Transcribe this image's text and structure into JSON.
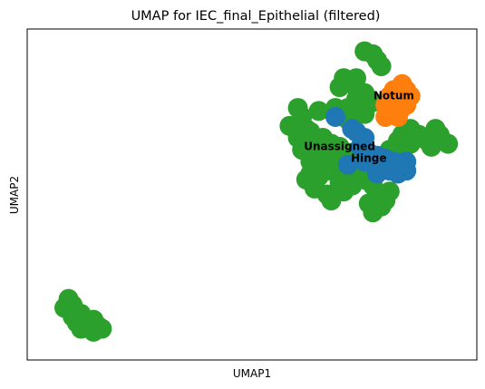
{
  "chart_data": {
    "type": "scatter",
    "title": "UMAP for IEC_final_Epithelial (filtered)",
    "xlabel": "UMAP1",
    "ylabel": "UMAP2",
    "xlim": [
      0,
      100
    ],
    "ylim": [
      0,
      100
    ],
    "ticks": "none",
    "grid": false,
    "legend": "on data",
    "series": [
      {
        "name": "Unassigned",
        "color": "#2ca02c",
        "label_at": [
          71,
          66
        ],
        "points": [
          [
            77,
            98
          ],
          [
            79,
            97
          ],
          [
            80,
            95
          ],
          [
            81,
            93
          ],
          [
            72,
            89
          ],
          [
            74,
            87
          ],
          [
            75,
            89
          ],
          [
            71,
            86
          ],
          [
            77,
            84
          ],
          [
            75,
            82
          ],
          [
            76,
            80
          ],
          [
            70,
            79
          ],
          [
            73,
            79
          ],
          [
            74,
            77
          ],
          [
            73,
            75
          ],
          [
            77,
            77
          ],
          [
            79,
            81
          ],
          [
            61,
            79
          ],
          [
            62,
            76
          ],
          [
            59,
            73
          ],
          [
            63,
            72
          ],
          [
            66,
            78
          ],
          [
            64,
            71
          ],
          [
            67,
            69
          ],
          [
            69,
            67
          ],
          [
            61,
            69
          ],
          [
            63,
            67
          ],
          [
            66,
            65
          ],
          [
            62,
            65
          ],
          [
            65,
            63
          ],
          [
            64,
            61
          ],
          [
            67,
            62
          ],
          [
            69,
            61
          ],
          [
            70,
            59
          ],
          [
            68,
            58
          ],
          [
            66,
            56
          ],
          [
            64,
            57
          ],
          [
            63,
            55
          ],
          [
            65,
            52
          ],
          [
            68,
            50
          ],
          [
            69,
            48
          ],
          [
            71,
            54
          ],
          [
            73,
            58
          ],
          [
            75,
            56
          ],
          [
            74,
            53
          ],
          [
            72,
            51
          ],
          [
            77,
            55
          ],
          [
            79,
            53
          ],
          [
            80,
            50
          ],
          [
            82,
            48
          ],
          [
            83,
            51
          ],
          [
            81,
            46
          ],
          [
            79,
            44
          ],
          [
            78,
            47
          ],
          [
            81,
            61
          ],
          [
            83,
            65
          ],
          [
            85,
            68
          ],
          [
            86,
            65
          ],
          [
            88,
            67
          ],
          [
            90,
            70
          ],
          [
            92,
            68
          ],
          [
            94,
            72
          ],
          [
            95,
            68
          ],
          [
            93,
            66
          ],
          [
            97,
            67
          ],
          [
            95,
            70
          ],
          [
            86,
            70
          ],
          [
            88,
            72
          ],
          [
            73,
            64
          ],
          [
            71,
            66
          ],
          [
            6,
            15
          ],
          [
            7,
            13
          ],
          [
            5,
            12
          ],
          [
            7,
            9
          ],
          [
            8,
            7
          ],
          [
            9,
            10
          ],
          [
            10,
            8
          ],
          [
            11,
            6
          ],
          [
            12,
            4
          ],
          [
            13,
            6
          ],
          [
            14,
            5
          ],
          [
            12,
            8
          ],
          [
            9,
            5
          ]
        ]
      },
      {
        "name": "Hinge",
        "color": "#1f77b4",
        "label_at": [
          78,
          62
        ],
        "points": [
          [
            70,
            76
          ],
          [
            74,
            72
          ],
          [
            75,
            71
          ],
          [
            77,
            69
          ],
          [
            76,
            66
          ],
          [
            78,
            64
          ],
          [
            80,
            63
          ],
          [
            82,
            62
          ],
          [
            84,
            61
          ],
          [
            83,
            58
          ],
          [
            85,
            57
          ],
          [
            80,
            57
          ],
          [
            77,
            61
          ],
          [
            73,
            60
          ],
          [
            81,
            59
          ],
          [
            87,
            61
          ],
          [
            86,
            59
          ],
          [
            87,
            58
          ]
        ]
      },
      {
        "name": "Notum",
        "color": "#ff7f0e",
        "label_at": [
          84,
          83
        ],
        "points": [
          [
            84,
            85
          ],
          [
            86,
            87
          ],
          [
            87,
            85
          ],
          [
            88,
            83
          ],
          [
            86,
            82
          ],
          [
            85,
            80
          ],
          [
            84,
            78
          ],
          [
            82,
            80
          ],
          [
            83,
            83
          ],
          [
            87,
            80
          ],
          [
            85,
            76
          ],
          [
            82,
            76
          ],
          [
            86,
            79
          ]
        ]
      }
    ]
  }
}
